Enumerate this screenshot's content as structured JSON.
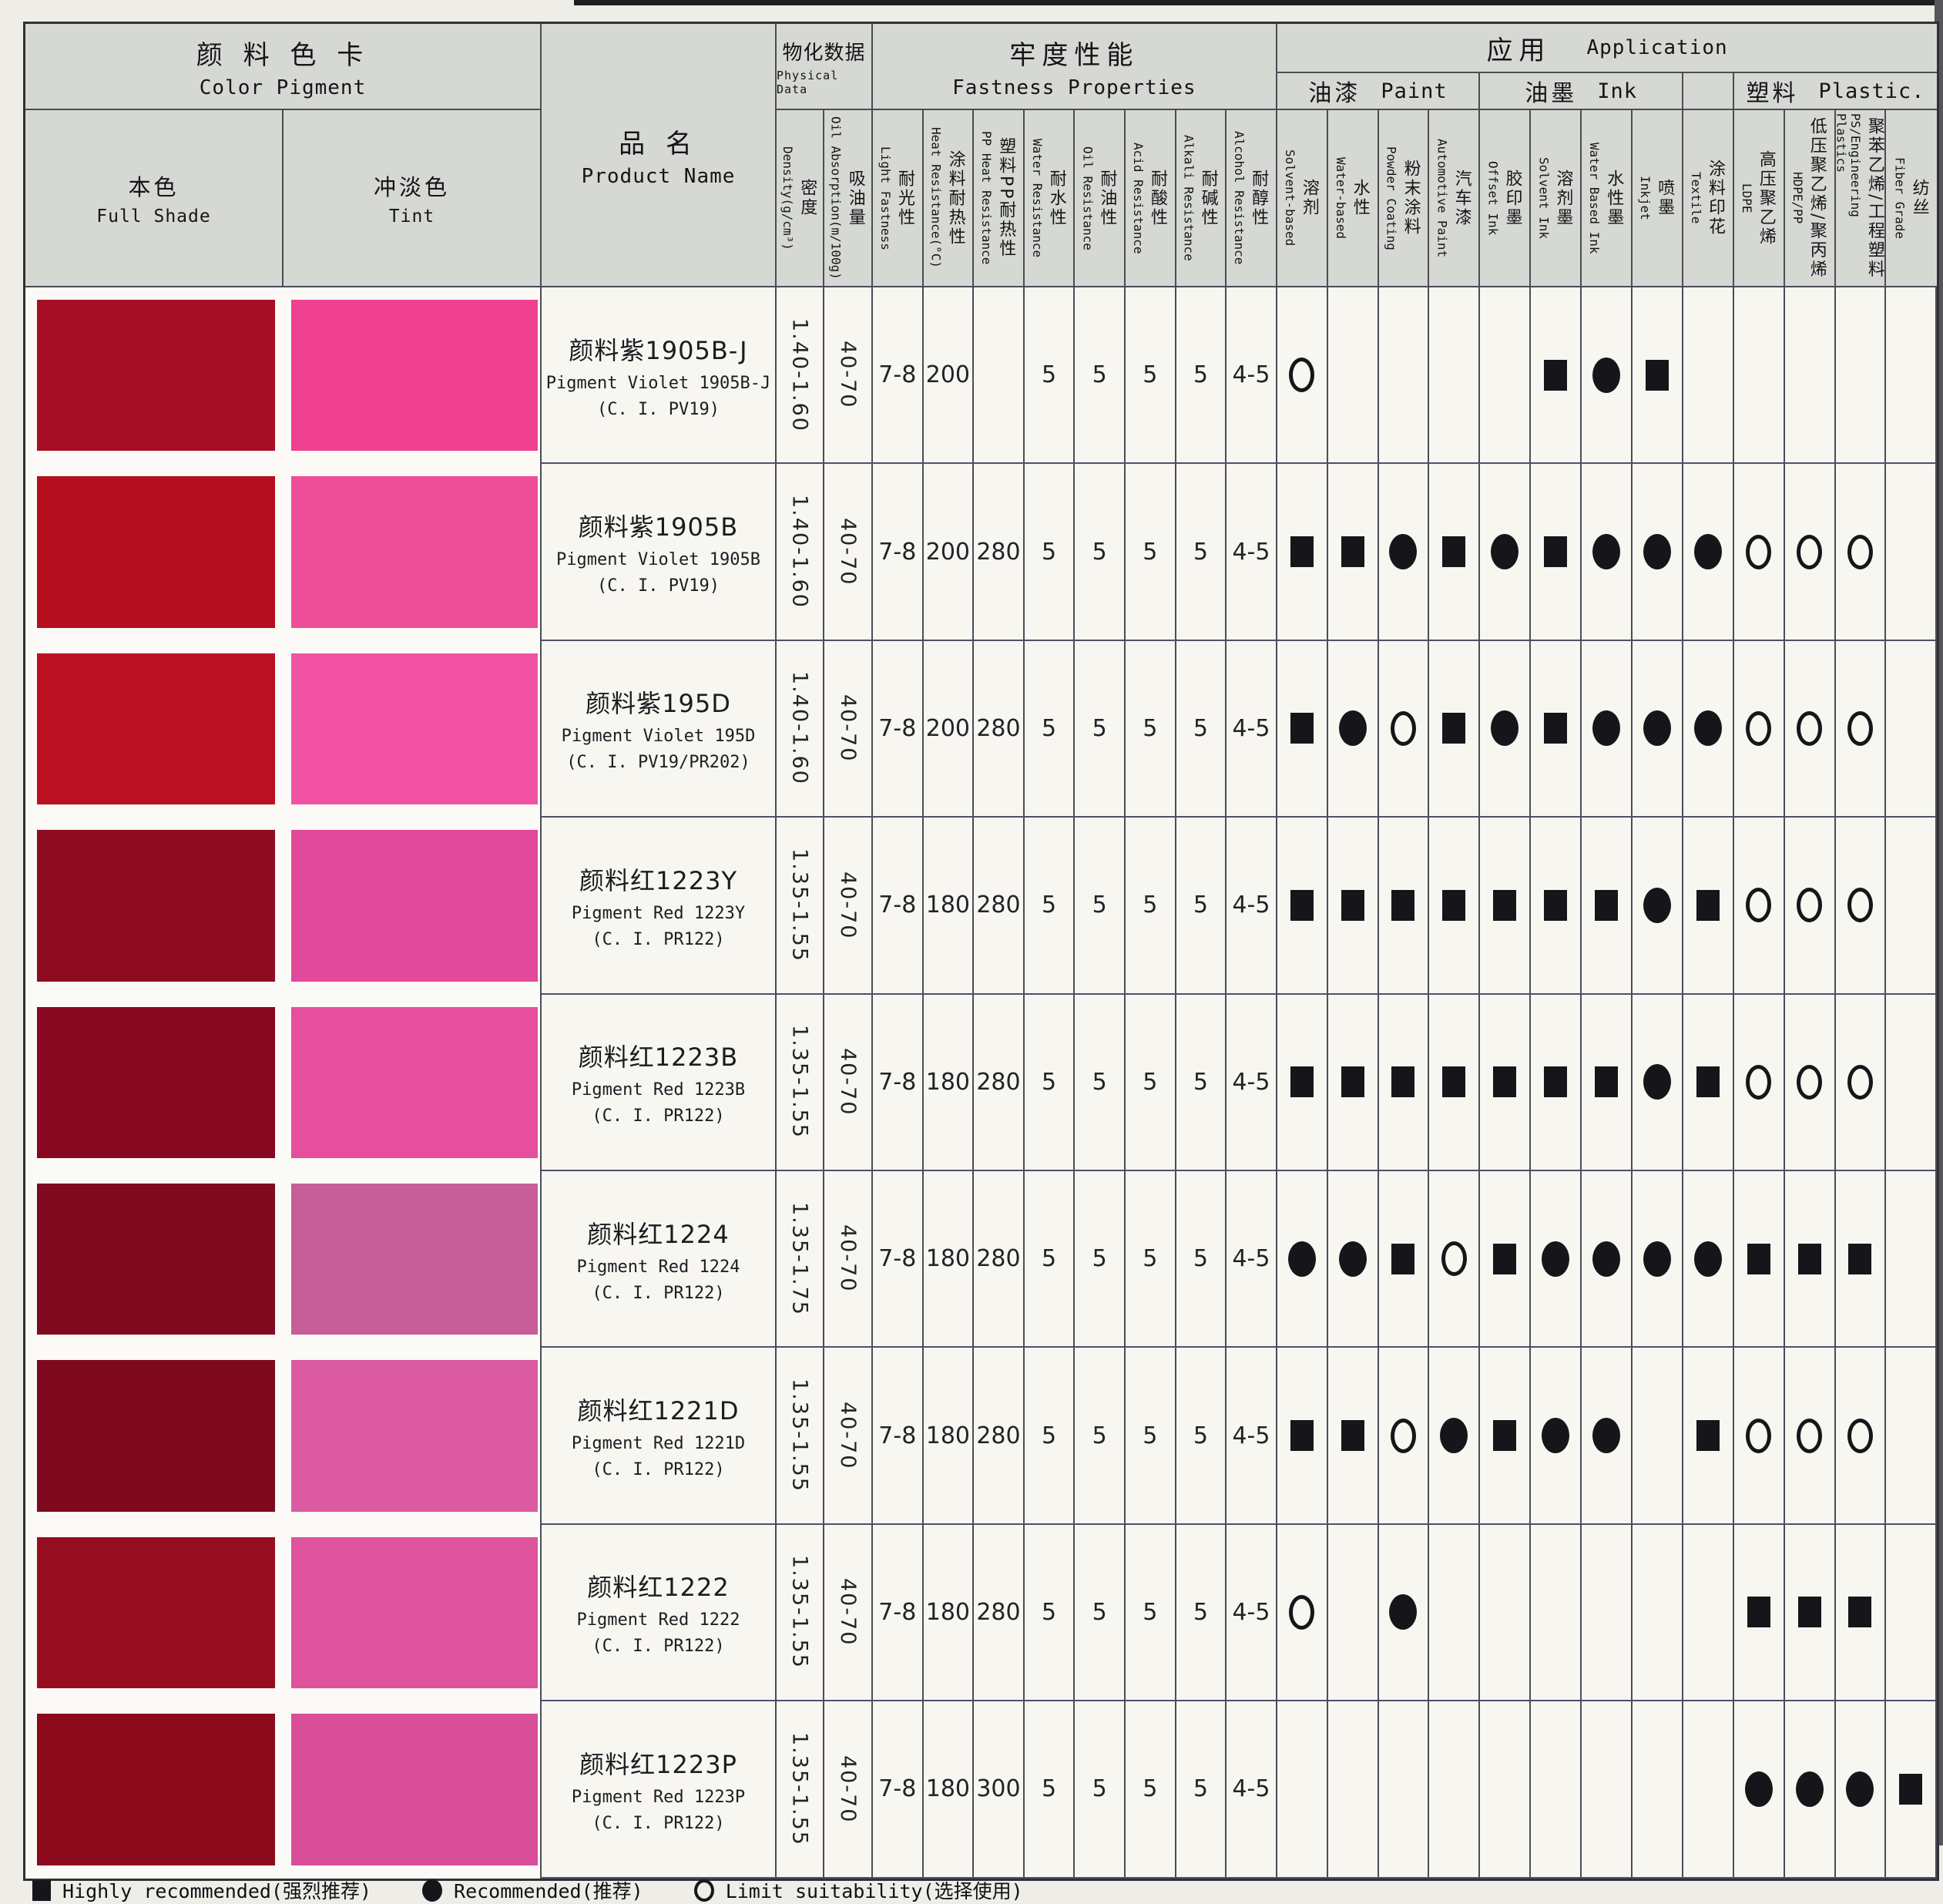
{
  "header": {
    "color_pigment": {
      "zh": "颜 料 色 卡",
      "en": "Color Pigment"
    },
    "full_shade": {
      "zh": "本色",
      "en": "Full Shade"
    },
    "tint": {
      "zh": "冲淡色",
      "en": "Tint"
    },
    "product_name": {
      "zh": "品 名",
      "en": "Product Name"
    },
    "physical_data": {
      "zh": "物化数据",
      "en": "Physical Data"
    },
    "physical_cols": [
      {
        "zh": "密度",
        "en": "Density(g/cm³)"
      },
      {
        "zh": "吸油量",
        "en": "Oil Absorption(m/100g)"
      }
    ],
    "fastness": {
      "zh": "牢度性能",
      "en": "Fastness Properties"
    },
    "fastness_cols": [
      {
        "zh": "耐光性",
        "en": "Light Fastness"
      },
      {
        "zh": "涂料耐热性",
        "en": "Heat Resistance(°C)"
      },
      {
        "zh": "塑料PP耐热性",
        "en": "PP Heat Resistance"
      },
      {
        "zh": "耐水性",
        "en": "Water Resistance"
      },
      {
        "zh": "耐油性",
        "en": "Oil Resistance"
      },
      {
        "zh": "耐酸性",
        "en": "Acid Resistance"
      },
      {
        "zh": "耐碱性",
        "en": "Alkali Resistance"
      },
      {
        "zh": "耐醇性",
        "en": "Alcohol Resistance"
      }
    ],
    "application": {
      "zh": "应用",
      "en": "Application"
    },
    "app_groups": [
      {
        "zh": "油漆",
        "en": "Paint"
      },
      {
        "zh": "油墨",
        "en": "Ink"
      },
      {
        "zh": "",
        "en": ""
      },
      {
        "zh": "塑料",
        "en": "Plastic."
      }
    ],
    "app_cols": [
      {
        "zh": "溶剂",
        "en": "Solvent-based"
      },
      {
        "zh": "水性",
        "en": "Water-based"
      },
      {
        "zh": "粉末涂料",
        "en": "Powder Coating"
      },
      {
        "zh": "汽车漆",
        "en": "Automotive Paint"
      },
      {
        "zh": "胶印墨",
        "en": "Offset Ink"
      },
      {
        "zh": "溶剂墨",
        "en": "Solvent Ink"
      },
      {
        "zh": "水性墨",
        "en": "Water Based Ink"
      },
      {
        "zh": "喷墨",
        "en": "Inkjet"
      },
      {
        "zh": "涂料印花",
        "en": "Textile"
      },
      {
        "zh": "高压聚乙烯",
        "en": "LDPE"
      },
      {
        "zh": "低压聚乙烯/聚丙烯",
        "en": "HDPE/PP"
      },
      {
        "zh": "聚苯乙烯/工程塑料",
        "en": "PS/Engineering Plastics"
      },
      {
        "zh": "纺丝",
        "en": "Fiber Grade"
      }
    ]
  },
  "rows": [
    {
      "full_shade": "#a50e24",
      "tint": "#ef4190",
      "name_zh": "颜料紫1905B-J",
      "name_en": "Pigment Violet 1905B-J",
      "ci": "(C. I. PV19)",
      "density": "1.40-1.60",
      "oil_absorption": "40-70",
      "light": "7-8",
      "heat": "200",
      "pp_heat": "",
      "water": "5",
      "oil": "5",
      "acid": "5",
      "alkali": "5",
      "alcohol": "4-5",
      "apps": [
        "o",
        "",
        "",
        "",
        "",
        "s",
        "d",
        "s",
        "",
        "",
        "",
        "",
        ""
      ]
    },
    {
      "full_shade": "#b50e1f",
      "tint": "#ee4e97",
      "name_zh": "颜料紫1905B",
      "name_en": "Pigment Violet 1905B",
      "ci": "(C. I. PV19)",
      "density": "1.40-1.60",
      "oil_absorption": "40-70",
      "light": "7-8",
      "heat": "200",
      "pp_heat": "280",
      "water": "5",
      "oil": "5",
      "acid": "5",
      "alkali": "5",
      "alcohol": "4-5",
      "apps": [
        "s",
        "s",
        "d",
        "s",
        "d",
        "s",
        "d",
        "d",
        "d",
        "o",
        "o",
        "o",
        ""
      ]
    },
    {
      "full_shade": "#ba1021",
      "tint": "#f153a2",
      "name_zh": "颜料紫195D",
      "name_en": "Pigment Violet 195D",
      "ci": "(C. I. PV19/PR202)",
      "density": "1.40-1.60",
      "oil_absorption": "40-70",
      "light": "7-8",
      "heat": "200",
      "pp_heat": "280",
      "water": "5",
      "oil": "5",
      "acid": "5",
      "alkali": "5",
      "alcohol": "4-5",
      "apps": [
        "s",
        "d",
        "o",
        "s",
        "d",
        "s",
        "d",
        "d",
        "d",
        "o",
        "o",
        "o",
        ""
      ]
    },
    {
      "full_shade": "#8e0b21",
      "tint": "#e2499b",
      "name_zh": "颜料红1223Y",
      "name_en": "Pigment Red 1223Y",
      "ci": "(C. I. PR122)",
      "density": "1.35-1.55",
      "oil_absorption": "40-70",
      "light": "7-8",
      "heat": "180",
      "pp_heat": "280",
      "water": "5",
      "oil": "5",
      "acid": "5",
      "alkali": "5",
      "alcohol": "4-5",
      "apps": [
        "s",
        "s",
        "s",
        "s",
        "s",
        "s",
        "s",
        "d",
        "s",
        "o",
        "o",
        "o",
        ""
      ]
    },
    {
      "full_shade": "#880821",
      "tint": "#e64e9e",
      "name_zh": "颜料红1223B",
      "name_en": "Pigment Red 1223B",
      "ci": "(C. I. PR122)",
      "density": "1.35-1.55",
      "oil_absorption": "40-70",
      "light": "7-8",
      "heat": "180",
      "pp_heat": "280",
      "water": "5",
      "oil": "5",
      "acid": "5",
      "alkali": "5",
      "alcohol": "4-5",
      "apps": [
        "s",
        "s",
        "s",
        "s",
        "s",
        "s",
        "s",
        "d",
        "s",
        "o",
        "o",
        "o",
        ""
      ]
    },
    {
      "full_shade": "#800a20",
      "tint": "#c75e98",
      "name_zh": "颜料红1224",
      "name_en": "Pigment Red 1224",
      "ci": "(C. I. PR122)",
      "density": "1.35-1.75",
      "oil_absorption": "40-70",
      "light": "7-8",
      "heat": "180",
      "pp_heat": "280",
      "water": "5",
      "oil": "5",
      "acid": "5",
      "alkali": "5",
      "alcohol": "4-5",
      "apps": [
        "d",
        "d",
        "s",
        "o",
        "s",
        "d",
        "d",
        "d",
        "d",
        "s",
        "s",
        "s",
        ""
      ]
    },
    {
      "full_shade": "#7e091e",
      "tint": "#db5aa1",
      "name_zh": "颜料红1221D",
      "name_en": "Pigment Red 1221D",
      "ci": "(C. I. PR122)",
      "density": "1.35-1.55",
      "oil_absorption": "40-70",
      "light": "7-8",
      "heat": "180",
      "pp_heat": "280",
      "water": "5",
      "oil": "5",
      "acid": "5",
      "alkali": "5",
      "alcohol": "4-5",
      "apps": [
        "s",
        "s",
        "o",
        "d",
        "s",
        "d",
        "d",
        "",
        "s",
        "o",
        "o",
        "o",
        ""
      ]
    },
    {
      "full_shade": "#970d20",
      "tint": "#de539c",
      "name_zh": "颜料红1222",
      "name_en": "Pigment Red 1222",
      "ci": "(C. I. PR122)",
      "density": "1.35-1.55",
      "oil_absorption": "40-70",
      "light": "7-8",
      "heat": "180",
      "pp_heat": "280",
      "water": "5",
      "oil": "5",
      "acid": "5",
      "alkali": "5",
      "alcohol": "4-5",
      "apps": [
        "o",
        "",
        "d",
        "",
        "",
        "",
        "",
        "",
        "",
        "s",
        "s",
        "s",
        ""
      ]
    },
    {
      "full_shade": "#8c0a1c",
      "tint": "#d94e99",
      "name_zh": "颜料红1223P",
      "name_en": "Pigment Red 1223P",
      "ci": "(C. I. PR122)",
      "density": "1.35-1.55",
      "oil_absorption": "40-70",
      "light": "7-8",
      "heat": "180",
      "pp_heat": "300",
      "water": "5",
      "oil": "5",
      "acid": "5",
      "alkali": "5",
      "alcohol": "4-5",
      "apps": [
        "",
        "",
        "",
        "",
        "",
        "",
        "",
        "",
        "",
        "d",
        "d",
        "d",
        "s"
      ]
    }
  ],
  "legend": {
    "items": [
      {
        "mark": "s",
        "label": "Highly recommended(强烈推荐)"
      },
      {
        "mark": "d",
        "label": "Recommended(推荐)"
      },
      {
        "mark": "o",
        "label": "Limit suitability(选择使用)"
      }
    ]
  }
}
